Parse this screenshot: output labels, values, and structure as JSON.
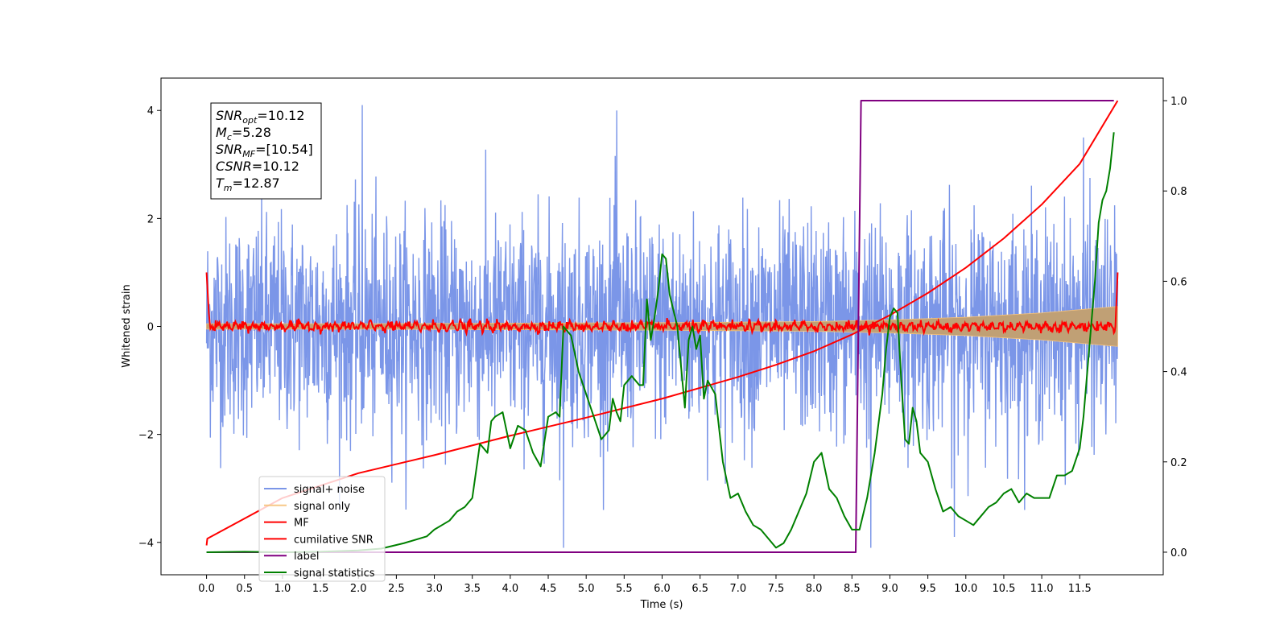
{
  "chart_data": {
    "type": "line",
    "xlabel": "Time (s)",
    "ylabel": "Whitened strain",
    "xlim": [
      -0.6,
      12.6
    ],
    "ylim": [
      -4.6,
      4.6
    ],
    "y2lim": [
      -0.05,
      1.05
    ],
    "x_ticks": [
      0.0,
      0.5,
      1.0,
      1.5,
      2.0,
      2.5,
      3.0,
      3.5,
      4.0,
      4.5,
      5.0,
      5.5,
      6.0,
      6.5,
      7.0,
      7.5,
      8.0,
      8.5,
      9.0,
      9.5,
      10.0,
      10.5,
      11.0,
      11.5
    ],
    "y_ticks": [
      -4,
      -2,
      0,
      2,
      4
    ],
    "y2_ticks": [
      0.0,
      0.2,
      0.4,
      0.6,
      0.8,
      1.0
    ],
    "grid": false,
    "legend_position": "lower-left",
    "info_box": {
      "lines": [
        {
          "label": "SNR",
          "sub": "opt",
          "value": "=10.12"
        },
        {
          "label": "M",
          "sub": "c",
          "value": "=5.28"
        },
        {
          "label": "SNR",
          "sub": "MF",
          "value": "=[10.54]"
        },
        {
          "label": "CSNR",
          "sub": "",
          "value": "=10.12"
        },
        {
          "label": "T",
          "sub": "m",
          "value": "=12.87"
        }
      ]
    },
    "series": [
      {
        "name": "signal+ noise",
        "color": "#7b96e8",
        "axis": "left",
        "kind": "noise",
        "x_range": [
          0.0,
          12.0
        ],
        "amplitude": 1.0,
        "peaks": [
          [
            2.05,
            4.1
          ],
          [
            5.4,
            4.0
          ],
          [
            4.7,
            -4.1
          ],
          [
            8.75,
            -4.1
          ],
          [
            11.55,
            3.5
          ],
          [
            9.85,
            -3.9
          ]
        ]
      },
      {
        "name": "signal only",
        "color": "#f6c27a",
        "axis": "left",
        "kind": "envelope",
        "x": [
          0.0,
          2.0,
          4.0,
          6.0,
          8.0,
          9.0,
          10.0,
          11.0,
          12.0
        ],
        "values": [
          0.05,
          0.05,
          0.06,
          0.07,
          0.09,
          0.12,
          0.17,
          0.25,
          0.37
        ]
      },
      {
        "name": "MF",
        "color": "#ff0000",
        "axis": "left",
        "kind": "oscillation",
        "x_range": [
          0.0,
          12.0
        ],
        "start_value": 1.0,
        "end_value": 1.0,
        "amplitude": 0.08
      },
      {
        "name": "cumilative SNR",
        "color": "#ff0000",
        "axis": "right",
        "x": [
          0.0,
          0.01,
          1.0,
          2.0,
          3.0,
          4.0,
          5.0,
          6.0,
          7.0,
          7.5,
          8.0,
          8.5,
          9.0,
          9.5,
          10.0,
          10.5,
          11.0,
          11.5,
          12.0
        ],
        "values": [
          0.015,
          0.03,
          0.12,
          0.175,
          0.215,
          0.258,
          0.298,
          0.34,
          0.388,
          0.415,
          0.445,
          0.482,
          0.525,
          0.574,
          0.63,
          0.695,
          0.77,
          0.86,
          1.0
        ]
      },
      {
        "name": "label",
        "color": "#800080",
        "axis": "right",
        "x": [
          0.0,
          8.55,
          8.62,
          11.95
        ],
        "values": [
          0.0,
          0.0,
          1.0,
          1.0
        ]
      },
      {
        "name": "signal statistics",
        "color": "#008000",
        "axis": "right",
        "x": [
          0.0,
          0.5,
          1.0,
          1.5,
          2.0,
          2.3,
          2.6,
          2.9,
          3.0,
          3.1,
          3.2,
          3.3,
          3.4,
          3.5,
          3.55,
          3.6,
          3.7,
          3.75,
          3.8,
          3.9,
          4.0,
          4.1,
          4.2,
          4.3,
          4.4,
          4.5,
          4.6,
          4.65,
          4.7,
          4.8,
          4.9,
          5.0,
          5.1,
          5.2,
          5.3,
          5.35,
          5.4,
          5.45,
          5.5,
          5.6,
          5.7,
          5.75,
          5.8,
          5.85,
          5.9,
          5.95,
          6.0,
          6.05,
          6.1,
          6.2,
          6.3,
          6.35,
          6.4,
          6.45,
          6.5,
          6.55,
          6.6,
          6.7,
          6.8,
          6.9,
          7.0,
          7.1,
          7.2,
          7.3,
          7.4,
          7.5,
          7.6,
          7.7,
          7.8,
          7.9,
          8.0,
          8.1,
          8.2,
          8.3,
          8.4,
          8.5,
          8.6,
          8.7,
          8.8,
          8.9,
          8.95,
          9.0,
          9.05,
          9.1,
          9.15,
          9.2,
          9.25,
          9.3,
          9.35,
          9.4,
          9.5,
          9.6,
          9.7,
          9.8,
          9.9,
          10.0,
          10.1,
          10.2,
          10.3,
          10.4,
          10.5,
          10.6,
          10.7,
          10.8,
          10.9,
          11.0,
          11.1,
          11.2,
          11.3,
          11.4,
          11.5,
          11.55,
          11.6,
          11.65,
          11.7,
          11.75,
          11.8,
          11.85,
          11.9,
          11.95
        ],
        "values": [
          0.0,
          0.001,
          0.0,
          0.001,
          0.004,
          0.008,
          0.02,
          0.035,
          0.05,
          0.06,
          0.07,
          0.09,
          0.1,
          0.12,
          0.18,
          0.24,
          0.22,
          0.29,
          0.3,
          0.31,
          0.23,
          0.28,
          0.27,
          0.22,
          0.19,
          0.3,
          0.31,
          0.3,
          0.5,
          0.48,
          0.4,
          0.35,
          0.3,
          0.25,
          0.27,
          0.34,
          0.31,
          0.29,
          0.37,
          0.39,
          0.37,
          0.37,
          0.56,
          0.47,
          0.52,
          0.58,
          0.66,
          0.65,
          0.57,
          0.5,
          0.32,
          0.47,
          0.5,
          0.45,
          0.48,
          0.34,
          0.38,
          0.35,
          0.2,
          0.12,
          0.13,
          0.09,
          0.06,
          0.05,
          0.03,
          0.01,
          0.02,
          0.05,
          0.09,
          0.13,
          0.2,
          0.22,
          0.14,
          0.12,
          0.08,
          0.05,
          0.05,
          0.12,
          0.22,
          0.35,
          0.45,
          0.52,
          0.54,
          0.53,
          0.38,
          0.25,
          0.24,
          0.32,
          0.29,
          0.22,
          0.2,
          0.14,
          0.09,
          0.1,
          0.08,
          0.07,
          0.06,
          0.08,
          0.1,
          0.11,
          0.13,
          0.14,
          0.11,
          0.13,
          0.12,
          0.12,
          0.12,
          0.17,
          0.17,
          0.18,
          0.23,
          0.3,
          0.4,
          0.5,
          0.6,
          0.73,
          0.78,
          0.8,
          0.85,
          0.93
        ]
      }
    ]
  }
}
